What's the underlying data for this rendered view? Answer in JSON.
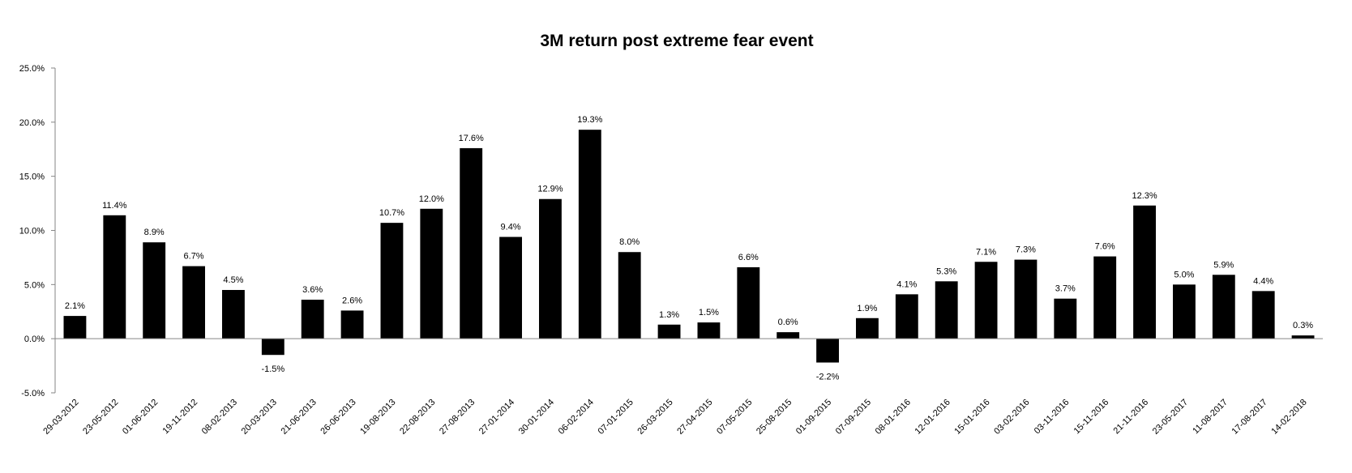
{
  "chart_data": {
    "type": "bar",
    "title": "3M return post extreme fear event",
    "xlabel": "",
    "ylabel": "",
    "ylim": [
      -5.0,
      25.0
    ],
    "yticks": [
      "-5.0%",
      "0.0%",
      "5.0%",
      "10.0%",
      "15.0%",
      "20.0%",
      "25.0%"
    ],
    "grid": false,
    "legend": "none",
    "bar_color": "#000000",
    "categories": [
      "29-03-2012",
      "23-05-2012",
      "01-06-2012",
      "19-11-2012",
      "08-02-2013",
      "20-03-2013",
      "21-06-2013",
      "26-06-2013",
      "19-08-2013",
      "22-08-2013",
      "27-08-2013",
      "27-01-2014",
      "30-01-2014",
      "06-02-2014",
      "07-01-2015",
      "26-03-2015",
      "27-04-2015",
      "07-05-2015",
      "25-08-2015",
      "01-09-2015",
      "07-09-2015",
      "08-01-2016",
      "12-01-2016",
      "15-01-2016",
      "03-02-2016",
      "03-11-2016",
      "15-11-2016",
      "21-11-2016",
      "23-05-2017",
      "11-08-2017",
      "17-08-2017",
      "14-02-2018"
    ],
    "values": [
      2.1,
      11.4,
      8.9,
      6.7,
      4.5,
      -1.5,
      3.6,
      2.6,
      10.7,
      12.0,
      17.6,
      9.4,
      12.9,
      19.3,
      8.0,
      1.3,
      1.5,
      6.6,
      0.6,
      -2.2,
      1.9,
      4.1,
      5.3,
      7.1,
      7.3,
      3.7,
      7.6,
      12.3,
      5.0,
      5.9,
      4.4,
      0.3
    ],
    "data_labels": [
      "2.1%",
      "11.4%",
      "8.9%",
      "6.7%",
      "4.5%",
      "-1.5%",
      "3.6%",
      "2.6%",
      "10.7%",
      "12.0%",
      "17.6%",
      "9.4%",
      "12.9%",
      "19.3%",
      "8.0%",
      "1.3%",
      "1.5%",
      "6.6%",
      "0.6%",
      "-2.2%",
      "1.9%",
      "4.1%",
      "5.3%",
      "7.1%",
      "7.3%",
      "3.7%",
      "7.6%",
      "12.3%",
      "5.0%",
      "5.9%",
      "4.4%",
      "0.3%"
    ]
  }
}
